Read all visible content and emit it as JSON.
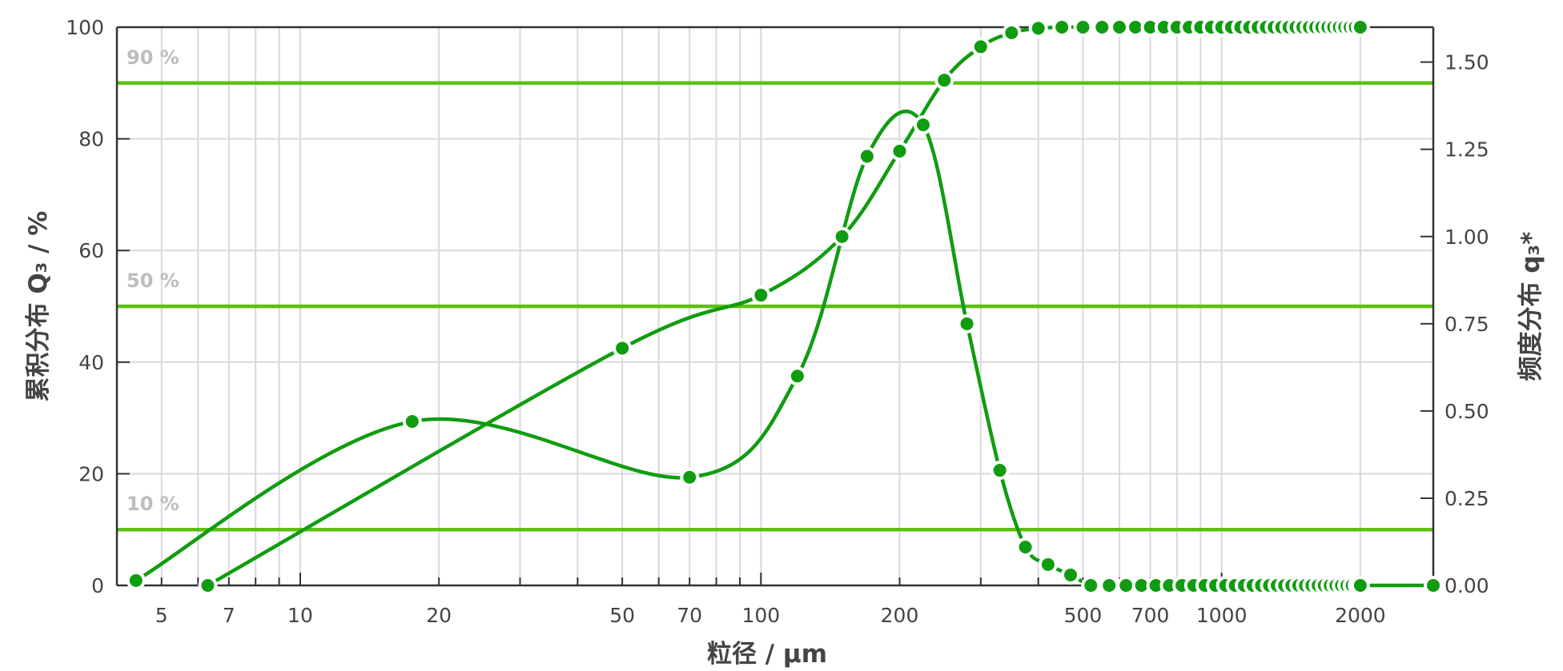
{
  "chart_data": {
    "type": "line",
    "xscale": "log",
    "xlim": [
      4,
      2880
    ],
    "ylim_left": [
      0,
      100
    ],
    "ylim_right": [
      0,
      1.6
    ],
    "grid": true,
    "xlabel": "粒径 / μm",
    "ylabel_left": "累积分布 Q₃ / %",
    "ylabel_right": "频度分布 q₃*",
    "x_ticks": [
      "5",
      "7",
      "10",
      "20",
      "50",
      "70",
      "100",
      "200",
      "500",
      "700",
      "1000",
      "2000"
    ],
    "y_left_ticks": [
      "0",
      "20",
      "40",
      "60",
      "80",
      "100"
    ],
    "y_right_ticks": [
      "0.00",
      "0.25",
      "0.50",
      "0.75",
      "1.00",
      "1.25",
      "1.50"
    ],
    "reference_lines": [
      {
        "value": 10,
        "label": "10 %"
      },
      {
        "value": 50,
        "label": "50 %"
      },
      {
        "value": 90,
        "label": "90 %"
      }
    ],
    "colors": {
      "series": "#109c10",
      "reference": "#5cc010",
      "grid": "#d9d9d9",
      "axis": "#333333"
    },
    "series": [
      {
        "axis": "left",
        "x": [
          6.3,
          50,
          100,
          150,
          200,
          250,
          300,
          350,
          400,
          450,
          500,
          550,
          600,
          650,
          700,
          750,
          800,
          850,
          900,
          950,
          1000,
          1050,
          1100,
          1150,
          1200,
          1250,
          1300,
          1350,
          1400,
          1450,
          1500,
          1550,
          1600,
          1650,
          1700,
          1750,
          1800,
          1850,
          1900,
          1950,
          2000
        ],
        "y": [
          0,
          42.5,
          52,
          62.5,
          77.8,
          90.5,
          96.5,
          99,
          99.8,
          100,
          100,
          100,
          100,
          100,
          100,
          100,
          100,
          100,
          100,
          100,
          100,
          100,
          100,
          100,
          100,
          100,
          100,
          100,
          100,
          100,
          100,
          100,
          100,
          100,
          100,
          100,
          100,
          100,
          100,
          100,
          100
        ]
      },
      {
        "axis": "right",
        "x": [
          4.4,
          17.5,
          70,
          120,
          170,
          225,
          280,
          330,
          375,
          420,
          470,
          520,
          570,
          620,
          670,
          720,
          770,
          820,
          870,
          920,
          970,
          1020,
          1070,
          1120,
          1170,
          1220,
          1270,
          1320,
          1370,
          1420,
          1470,
          1520,
          1570,
          1620,
          1670,
          1720,
          1770,
          1820,
          1870,
          1920,
          1970,
          2000,
          2880
        ],
        "y": [
          0.014,
          0.47,
          0.31,
          0.6,
          1.23,
          1.32,
          0.75,
          0.33,
          0.11,
          0.06,
          0.03,
          0,
          0,
          0,
          0,
          0,
          0,
          0,
          0,
          0,
          0,
          0,
          0,
          0,
          0,
          0,
          0,
          0,
          0,
          0,
          0,
          0,
          0,
          0,
          0,
          0,
          0,
          0,
          0,
          0,
          0,
          0,
          0
        ]
      }
    ]
  }
}
